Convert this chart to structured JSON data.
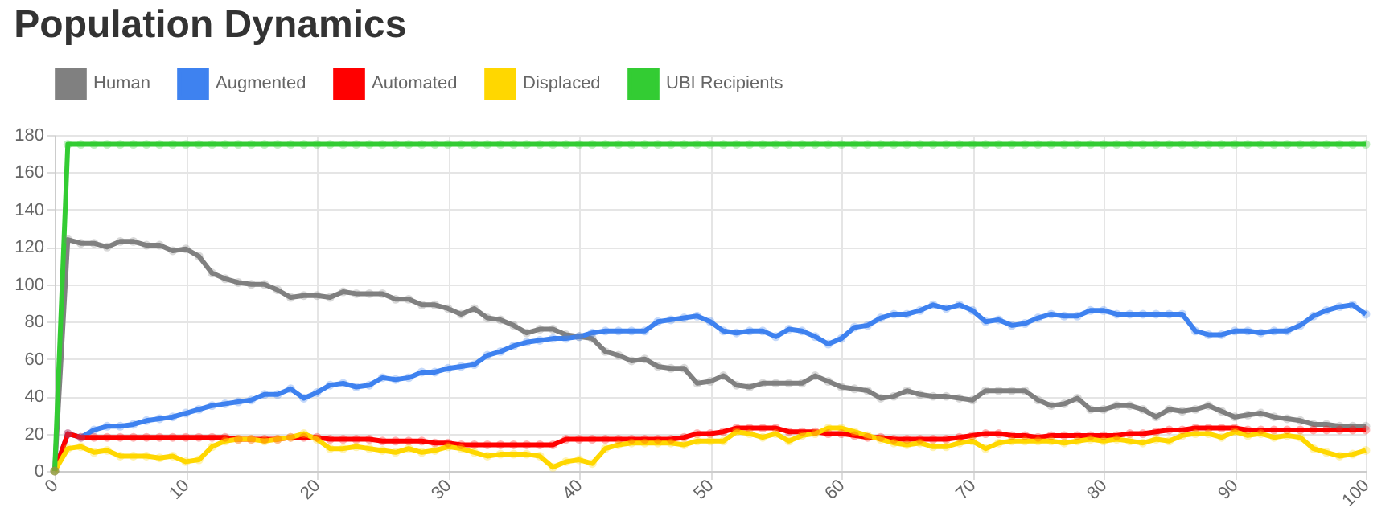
{
  "chart_data": {
    "type": "line",
    "title": "Population Dynamics",
    "x": [
      0,
      1,
      2,
      3,
      4,
      5,
      6,
      7,
      8,
      9,
      10,
      11,
      12,
      13,
      14,
      15,
      16,
      17,
      18,
      19,
      20,
      21,
      22,
      23,
      24,
      25,
      26,
      27,
      28,
      29,
      30,
      31,
      32,
      33,
      34,
      35,
      36,
      37,
      38,
      39,
      40,
      41,
      42,
      43,
      44,
      45,
      46,
      47,
      48,
      49,
      50,
      51,
      52,
      53,
      54,
      55,
      56,
      57,
      58,
      59,
      60,
      61,
      62,
      63,
      64,
      65,
      66,
      67,
      68,
      69,
      70,
      71,
      72,
      73,
      74,
      75,
      76,
      77,
      78,
      79,
      80,
      81,
      82,
      83,
      84,
      85,
      86,
      87,
      88,
      89,
      90,
      91,
      92,
      93,
      94,
      95,
      96,
      97,
      98,
      99,
      100
    ],
    "xlim": [
      0,
      100
    ],
    "xticks": [
      0,
      10,
      20,
      30,
      40,
      50,
      60,
      70,
      80,
      90,
      100
    ],
    "ylim": [
      0,
      180
    ],
    "yticks": [
      0,
      20,
      40,
      60,
      80,
      100,
      120,
      140,
      160,
      180
    ],
    "grid": true,
    "legend": "top",
    "marker": "circle",
    "line_style": "solid",
    "series": [
      {
        "name": "Human",
        "color": "#808080",
        "values": [
          0,
          124,
          122,
          122,
          120,
          123,
          123,
          121,
          121,
          118,
          119,
          115,
          106,
          103,
          101,
          100,
          100,
          97,
          93,
          94,
          94,
          93,
          96,
          95,
          95,
          95,
          92,
          92,
          89,
          89,
          87,
          84,
          87,
          82,
          81,
          78,
          74,
          76,
          76,
          73,
          72,
          71,
          64,
          62,
          59,
          60,
          56,
          55,
          55,
          47,
          48,
          51,
          46,
          45,
          47,
          47,
          47,
          47,
          51,
          48,
          45,
          44,
          43,
          39,
          40,
          43,
          41,
          40,
          40,
          39,
          38,
          43,
          43,
          43,
          43,
          38,
          35,
          36,
          39,
          33,
          33,
          35,
          35,
          33,
          29,
          33,
          32,
          33,
          35,
          32,
          29,
          30,
          31,
          29,
          28,
          27,
          25,
          25,
          24,
          24,
          24
        ]
      },
      {
        "name": "Augmented",
        "color": "#3e82f0",
        "values": [
          0,
          20,
          18,
          22,
          24,
          24,
          25,
          27,
          28,
          29,
          31,
          33,
          35,
          36,
          37,
          38,
          41,
          41,
          44,
          39,
          42,
          46,
          47,
          45,
          46,
          50,
          49,
          50,
          53,
          53,
          55,
          56,
          57,
          62,
          64,
          67,
          69,
          70,
          71,
          71,
          72,
          74,
          75,
          75,
          75,
          75,
          80,
          81,
          82,
          83,
          80,
          75,
          74,
          75,
          75,
          72,
          76,
          75,
          72,
          68,
          71,
          77,
          78,
          82,
          84,
          84,
          86,
          89,
          87,
          89,
          86,
          80,
          81,
          78,
          79,
          82,
          84,
          83,
          83,
          86,
          86,
          84,
          84,
          84,
          84,
          84,
          84,
          75,
          73,
          73,
          75,
          75,
          74,
          75,
          75,
          78,
          83,
          86,
          88,
          89,
          84
        ]
      },
      {
        "name": "Automated",
        "color": "#ff0000",
        "values": [
          0,
          20,
          18,
          18,
          18,
          18,
          18,
          18,
          18,
          18,
          18,
          18,
          18,
          18,
          17,
          17,
          17,
          17,
          18,
          18,
          18,
          17,
          17,
          17,
          17,
          16,
          16,
          16,
          16,
          15,
          15,
          14,
          14,
          14,
          14,
          14,
          14,
          14,
          14,
          17,
          17,
          17,
          17,
          17,
          17,
          17,
          17,
          17,
          18,
          20,
          20,
          21,
          23,
          23,
          23,
          23,
          21,
          21,
          21,
          20,
          20,
          19,
          18,
          18,
          17,
          17,
          17,
          17,
          17,
          18,
          19,
          20,
          20,
          19,
          19,
          18,
          19,
          19,
          19,
          19,
          19,
          19,
          20,
          20,
          21,
          22,
          22,
          23,
          23,
          23,
          23,
          22,
          22,
          22,
          22,
          22,
          22,
          22,
          22,
          22,
          22
        ]
      },
      {
        "name": "Displaced",
        "color": "#ffd700",
        "values": [
          0,
          12,
          13,
          10,
          11,
          8,
          8,
          8,
          7,
          8,
          5,
          6,
          13,
          16,
          17,
          17,
          16,
          17,
          18,
          20,
          17,
          12,
          12,
          13,
          12,
          11,
          10,
          12,
          10,
          11,
          13,
          12,
          10,
          8,
          9,
          9,
          9,
          8,
          2,
          5,
          6,
          4,
          12,
          14,
          15,
          15,
          15,
          15,
          14,
          16,
          16,
          16,
          21,
          20,
          18,
          20,
          16,
          19,
          20,
          23,
          23,
          21,
          19,
          17,
          15,
          14,
          15,
          13,
          13,
          15,
          16,
          12,
          15,
          16,
          16,
          16,
          16,
          15,
          16,
          17,
          16,
          17,
          16,
          15,
          17,
          16,
          19,
          20,
          20,
          18,
          21,
          19,
          20,
          18,
          19,
          18,
          12,
          10,
          8,
          9,
          11
        ]
      },
      {
        "name": "UBI Recipients",
        "color": "#33cc33",
        "values": [
          0,
          175,
          175,
          175,
          175,
          175,
          175,
          175,
          175,
          175,
          175,
          175,
          175,
          175,
          175,
          175,
          175,
          175,
          175,
          175,
          175,
          175,
          175,
          175,
          175,
          175,
          175,
          175,
          175,
          175,
          175,
          175,
          175,
          175,
          175,
          175,
          175,
          175,
          175,
          175,
          175,
          175,
          175,
          175,
          175,
          175,
          175,
          175,
          175,
          175,
          175,
          175,
          175,
          175,
          175,
          175,
          175,
          175,
          175,
          175,
          175,
          175,
          175,
          175,
          175,
          175,
          175,
          175,
          175,
          175,
          175,
          175,
          175,
          175,
          175,
          175,
          175,
          175,
          175,
          175,
          175,
          175,
          175,
          175,
          175,
          175,
          175,
          175,
          175,
          175,
          175,
          175,
          175,
          175,
          175,
          175,
          175,
          175,
          175,
          175,
          175
        ]
      }
    ]
  }
}
